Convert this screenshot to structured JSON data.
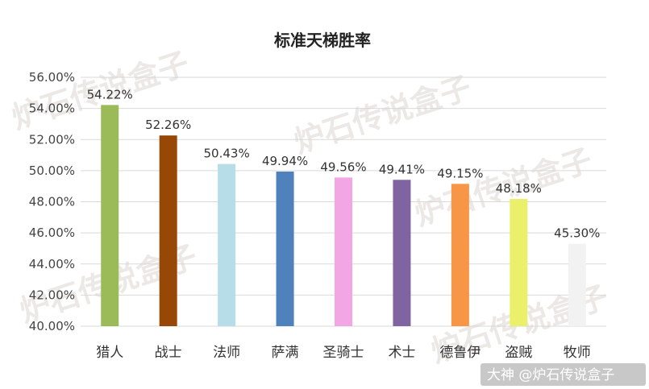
{
  "chart_data": {
    "type": "bar",
    "title": "标准天梯胜率",
    "categories": [
      "猎人",
      "战士",
      "法师",
      "萨满",
      "圣骑士",
      "术士",
      "德鲁伊",
      "盗贼",
      "牧师"
    ],
    "values": [
      54.22,
      52.26,
      50.43,
      49.94,
      49.56,
      49.41,
      49.15,
      48.18,
      45.3
    ],
    "value_labels": [
      "54.22%",
      "52.26%",
      "50.43%",
      "49.94%",
      "49.56%",
      "49.41%",
      "49.15%",
      "48.18%",
      "45.30%"
    ],
    "colors": [
      "#9bbb59",
      "#974706",
      "#b7dde8",
      "#4f81bd",
      "#f2a6e4",
      "#8064a2",
      "#f79646",
      "#eaf06a",
      "#f2f2f2"
    ],
    "ylim": [
      40,
      56
    ],
    "yticks": [
      40,
      42,
      44,
      46,
      48,
      50,
      52,
      54,
      56
    ],
    "ytick_labels": [
      "40.00%",
      "42.00%",
      "44.00%",
      "46.00%",
      "48.00%",
      "50.00%",
      "52.00%",
      "54.00%",
      "56.00%"
    ],
    "grid": true,
    "xlabel": "",
    "ylabel": ""
  },
  "watermark": {
    "text": "炉石传说盒子",
    "credit": "大神 @炉石传说盒子"
  }
}
